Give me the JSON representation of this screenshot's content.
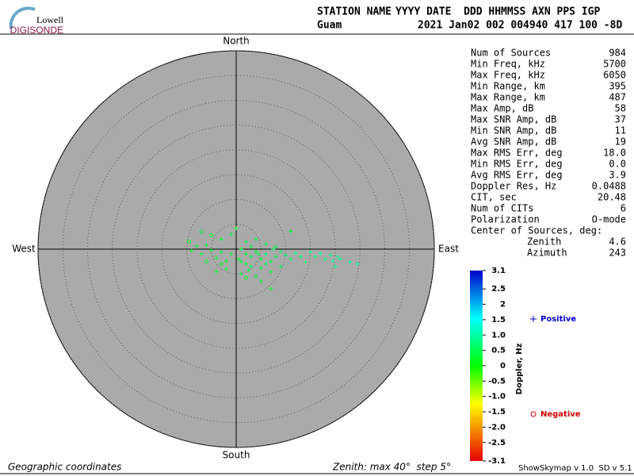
{
  "header": {
    "logo_top": "Lowell",
    "logo_bottom": "DIGISONDE",
    "row1_left": "STATION NAME",
    "row1_right": "YYYY DATE  DDD HHMMSS AXN PPS IGP",
    "row2_left": "Guam",
    "row2_right": "2021 Jan02 002 004940 417 100 -8D"
  },
  "stats": {
    "rows": [
      {
        "label": "Num of Sources",
        "value": "984"
      },
      {
        "label": "Min Freq, kHz",
        "value": "5700"
      },
      {
        "label": "Max Freq, kHz",
        "value": "6050"
      },
      {
        "label": "Min Range, km",
        "value": "395"
      },
      {
        "label": "Max Range, km",
        "value": "487"
      },
      {
        "label": "Max Amp, dB",
        "value": "58"
      },
      {
        "label": "Max SNR Amp, dB",
        "value": "37"
      },
      {
        "label": "Min SNR Amp, dB",
        "value": "11"
      },
      {
        "label": "Avg SNR Amp, dB",
        "value": "19"
      },
      {
        "label": "Max RMS Err, deg",
        "value": "18.0"
      },
      {
        "label": "Min RMS Err, deg",
        "value": "0.0"
      },
      {
        "label": "Avg RMS Err, deg",
        "value": "3.9"
      },
      {
        "label": "Doppler Res, Hz",
        "value": "0.0488"
      },
      {
        "label": "CIT, sec",
        "value": "20.48"
      },
      {
        "label": "Num of CITs",
        "value": "6"
      },
      {
        "label": "Polarization",
        "value": "O-mode"
      }
    ],
    "center_title": "Center of Sources, deg:",
    "center_rows": [
      {
        "label": "Zenith",
        "value": "4.6"
      },
      {
        "label": "Azimuth",
        "value": "243"
      }
    ]
  },
  "chart_data": {
    "type": "scatter",
    "directions": {
      "north": "North",
      "south": "South",
      "west": "West",
      "east": "East"
    },
    "xlim": [
      -40,
      40
    ],
    "ylim": [
      -40,
      40
    ],
    "rings": [
      5,
      10,
      15,
      20,
      25,
      30,
      35,
      40
    ],
    "series": [
      {
        "name": "Positive",
        "color": "#0000cc",
        "marker": "plus",
        "x": [
          1,
          2,
          3,
          4,
          5,
          6,
          7,
          2,
          3,
          5,
          8,
          9,
          10,
          11,
          12,
          13,
          14,
          0.5,
          -1,
          -2,
          -3,
          -4,
          -5,
          -6,
          -7,
          -8,
          -9,
          -3,
          -1,
          0,
          2,
          4,
          6,
          8,
          11,
          -4,
          1,
          4,
          7,
          9,
          7,
          5,
          15,
          16,
          17,
          18,
          19,
          20,
          19.5,
          20.5,
          21,
          24.5,
          23,
          6,
          3,
          1,
          2.5,
          4.5,
          7.5,
          -2
        ],
        "y": [
          0,
          -1,
          -1.5,
          -0.5,
          -2,
          -1,
          -2.5,
          -3,
          -3.5,
          -3.8,
          -1.5,
          -0.5,
          -1.2,
          -2,
          -0.8,
          -1.5,
          -2.6,
          -2,
          -1,
          -2.4,
          -0.6,
          -1.8,
          -0.2,
          0.8,
          -1,
          0.6,
          -0.3,
          2,
          3,
          4.2,
          1.5,
          2,
          1,
          0.5,
          3.6,
          -4.5,
          -5,
          -5.5,
          -4.6,
          -3.5,
          -8,
          -6.5,
          -0.6,
          -1.5,
          -0.9,
          -2,
          -1.2,
          -3.5,
          -2.4,
          -1.5,
          -2,
          -3,
          -2.6,
          -3,
          0.5,
          -2.5,
          -4.3,
          -1,
          0,
          -4
        ],
        "doppler": [
          0.4,
          0.3,
          0.5,
          0.4,
          0.3,
          0.6,
          0.4,
          0.3,
          0.5,
          0.4,
          0.5,
          0.6,
          0.7,
          0.6,
          0.8,
          0.7,
          0.6,
          0.3,
          0.3,
          0.3,
          0.4,
          0.3,
          0.3,
          0.4,
          0.3,
          0.3,
          0.3,
          0.3,
          0.4,
          0.3,
          0.4,
          0.5,
          0.4,
          0.5,
          0.3,
          0.3,
          0.4,
          0.3,
          0.4,
          0.5,
          0.3,
          0.4,
          0.9,
          0.8,
          0.9,
          0.8,
          0.9,
          0.9,
          1.0,
          0.9,
          0.9,
          0.9,
          1.0,
          0.5,
          0.4,
          0.4,
          0.3,
          0.4,
          0.5,
          0.3
        ]
      },
      {
        "name": "Negative",
        "color": "#cc0000",
        "marker": "circle",
        "x": [
          -7,
          -5,
          -9.5,
          -3,
          -6,
          2
        ],
        "y": [
          3.5,
          2.8,
          1.5,
          -3,
          -2.5,
          -5.8
        ],
        "doppler": [
          0.3,
          0.3,
          0.2,
          0.2,
          0.3,
          0.2
        ]
      }
    ],
    "colorbar": {
      "label": "Doppler, Hz",
      "lim": [
        -3.1,
        3.1
      ],
      "ticks": [
        3.1,
        2.5,
        2,
        1.5,
        {
          "value": 1,
          "label": "1.0"
        },
        0.5,
        0,
        -0.5,
        {
          "value": -1,
          "label": "-1.0"
        },
        -1.5,
        {
          "value": -2,
          "label": "-2.0"
        },
        -2.5,
        -3.1
      ]
    },
    "footer_left": "Geographic coordinates",
    "footer_center": "Zenith: max 40°  step 5°",
    "footer_right": "ShowSkymap v 1.0  SD v 5.1"
  }
}
